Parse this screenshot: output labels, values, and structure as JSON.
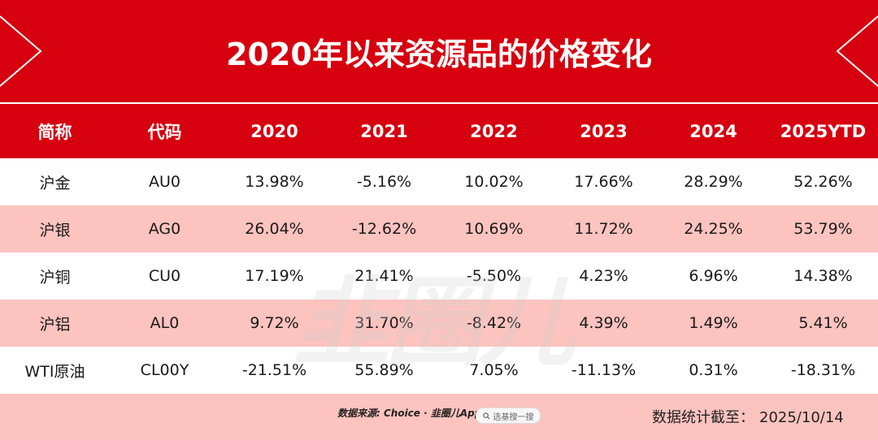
{
  "title": "2020年以来资源品的价格变化",
  "columns": [
    "简称",
    "代码",
    "2020",
    "2021",
    "2022",
    "2023",
    "2024",
    "2025YTD"
  ],
  "rows": [
    [
      "沪金",
      "AU0",
      "13.98%",
      "-5.16%",
      "10.02%",
      "17.66%",
      "28.29%",
      "52.26%"
    ],
    [
      "沪银",
      "AG0",
      "26.04%",
      "-12.62%",
      "10.69%",
      "11.72%",
      "24.25%",
      "53.79%"
    ],
    [
      "沪铜",
      "CU0",
      "17.19%",
      "21.41%",
      "-5.50%",
      "4.23%",
      "6.96%",
      "14.38%"
    ],
    [
      "沪铝",
      "AL0",
      "9.72%",
      "31.70%",
      "-8.42%",
      "4.39%",
      "1.49%",
      "5.41%"
    ],
    [
      "WTI原油",
      "CL00Y",
      "-21.51%",
      "55.89%",
      "7.05%",
      "-11.13%",
      "0.31%",
      "-18.31%"
    ]
  ],
  "footer": {
    "source": "数据来源: Choice · 韭圈儿App",
    "search_placeholder": "选基搜一搜",
    "as_of_label": "数据统计截至：",
    "as_of_date": "2025/10/14"
  },
  "watermark": "韭圈儿",
  "colors": {
    "header_red": "#d7000f",
    "stripe_pink": "#fdc3be"
  }
}
